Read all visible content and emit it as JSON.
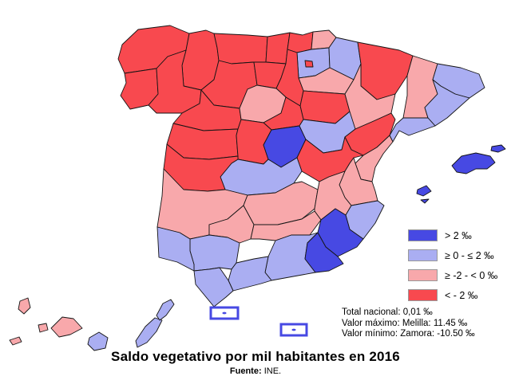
{
  "title": "Saldo vegetativo por mil habitantes en 2016",
  "source": {
    "label": "Fuente:",
    "value": " INE."
  },
  "legend": {
    "items": [
      {
        "key": "gt_2",
        "label": "> 2 ‰",
        "color": "#4749E3"
      },
      {
        "key": "0_to_2",
        "label": "≥ 0 - ≤ 2 ‰",
        "color": "#AAAEF2"
      },
      {
        "key": "minus2_to_0",
        "label": "≥ -2 - < 0 ‰",
        "color": "#F8A8AB"
      },
      {
        "key": "lt_minus2",
        "label": "< - 2 ‰",
        "color": "#F8494F"
      }
    ]
  },
  "stats": {
    "lines": [
      "Total nacional: 0,01  ‰",
      "Valor máximo: Melilla: 11.45  ‰",
      "Valor mínimo: Zamora: -10.50  ‰"
    ]
  },
  "map": {
    "border_color": "#141414",
    "sea_color": "#ffffff",
    "provinces": [
      {
        "id": "acoruna",
        "name": "A Coruña",
        "category": "lt_minus2"
      },
      {
        "id": "lugo",
        "name": "Lugo",
        "category": "lt_minus2"
      },
      {
        "id": "pontevedra",
        "name": "Pontevedra",
        "category": "lt_minus2"
      },
      {
        "id": "ourense",
        "name": "Ourense",
        "category": "lt_minus2"
      },
      {
        "id": "asturias",
        "name": "Asturias",
        "category": "lt_minus2"
      },
      {
        "id": "cantabria",
        "name": "Cantabria",
        "category": "lt_minus2"
      },
      {
        "id": "vizcaya",
        "name": "Bizkaia",
        "category": "lt_minus2"
      },
      {
        "id": "guipuzcoa",
        "name": "Gipuzkoa",
        "category": "minus2_to_0"
      },
      {
        "id": "alava",
        "name": "Álava",
        "category": "0_to_2"
      },
      {
        "id": "trevino",
        "name": "Treviño (Burgos)",
        "category": "lt_minus2"
      },
      {
        "id": "navarra",
        "name": "Navarra",
        "category": "0_to_2"
      },
      {
        "id": "larioja",
        "name": "La Rioja",
        "category": "minus2_to_0"
      },
      {
        "id": "leon",
        "name": "León",
        "category": "lt_minus2"
      },
      {
        "id": "palencia",
        "name": "Palencia",
        "category": "lt_minus2"
      },
      {
        "id": "burgos",
        "name": "Burgos",
        "category": "lt_minus2"
      },
      {
        "id": "zamora",
        "name": "Zamora",
        "category": "lt_minus2"
      },
      {
        "id": "valladolid",
        "name": "Valladolid",
        "category": "minus2_to_0"
      },
      {
        "id": "soria",
        "name": "Soria",
        "category": "lt_minus2"
      },
      {
        "id": "segovia",
        "name": "Segovia",
        "category": "lt_minus2"
      },
      {
        "id": "salamanca",
        "name": "Salamanca",
        "category": "lt_minus2"
      },
      {
        "id": "avila",
        "name": "Ávila",
        "category": "lt_minus2"
      },
      {
        "id": "madrid",
        "name": "Madrid",
        "category": "gt_2"
      },
      {
        "id": "guadalajara",
        "name": "Guadalajara",
        "category": "0_to_2"
      },
      {
        "id": "huesca",
        "name": "Huesca",
        "category": "lt_minus2"
      },
      {
        "id": "zaragoza",
        "name": "Zaragoza",
        "category": "minus2_to_0"
      },
      {
        "id": "teruel",
        "name": "Teruel",
        "category": "lt_minus2"
      },
      {
        "id": "lleida",
        "name": "Lleida",
        "category": "minus2_to_0"
      },
      {
        "id": "girona",
        "name": "Girona",
        "category": "0_to_2"
      },
      {
        "id": "barcelona",
        "name": "Barcelona",
        "category": "0_to_2"
      },
      {
        "id": "tarragona",
        "name": "Tarragona",
        "category": "0_to_2"
      },
      {
        "id": "castellon",
        "name": "Castellón",
        "category": "minus2_to_0"
      },
      {
        "id": "cuenca",
        "name": "Cuenca",
        "category": "lt_minus2"
      },
      {
        "id": "valencia",
        "name": "Valencia",
        "category": "minus2_to_0"
      },
      {
        "id": "toledo",
        "name": "Toledo",
        "category": "0_to_2"
      },
      {
        "id": "caceres",
        "name": "Cáceres",
        "category": "lt_minus2"
      },
      {
        "id": "badajoz",
        "name": "Badajoz",
        "category": "minus2_to_0"
      },
      {
        "id": "ciudadreal",
        "name": "Ciudad Real",
        "category": "minus2_to_0"
      },
      {
        "id": "albacete",
        "name": "Albacete",
        "category": "minus2_to_0"
      },
      {
        "id": "alicante",
        "name": "Alicante",
        "category": "0_to_2"
      },
      {
        "id": "murcia",
        "name": "Murcia",
        "category": "gt_2"
      },
      {
        "id": "cordoba",
        "name": "Córdoba",
        "category": "minus2_to_0"
      },
      {
        "id": "jaen",
        "name": "Jaén",
        "category": "minus2_to_0"
      },
      {
        "id": "granada",
        "name": "Granada",
        "category": "0_to_2"
      },
      {
        "id": "almeria",
        "name": "Almería",
        "category": "gt_2"
      },
      {
        "id": "sevilla",
        "name": "Sevilla",
        "category": "0_to_2"
      },
      {
        "id": "malaga",
        "name": "Málaga",
        "category": "0_to_2"
      },
      {
        "id": "huelva",
        "name": "Huelva",
        "category": "0_to_2"
      },
      {
        "id": "cadiz",
        "name": "Cádiz",
        "category": "0_to_2"
      },
      {
        "id": "balears",
        "name": "Illes Balears",
        "category": "gt_2"
      },
      {
        "id": "santacruztenerife",
        "name": "Santa Cruz de Tenerife",
        "category": "minus2_to_0"
      },
      {
        "id": "laspalmas",
        "name": "Las Palmas",
        "category": "0_to_2"
      }
    ],
    "city_boxes": [
      {
        "id": "ceuta",
        "name": "Ceuta",
        "category": "gt_2"
      },
      {
        "id": "melilla",
        "name": "Melilla",
        "category": "gt_2"
      }
    ]
  }
}
